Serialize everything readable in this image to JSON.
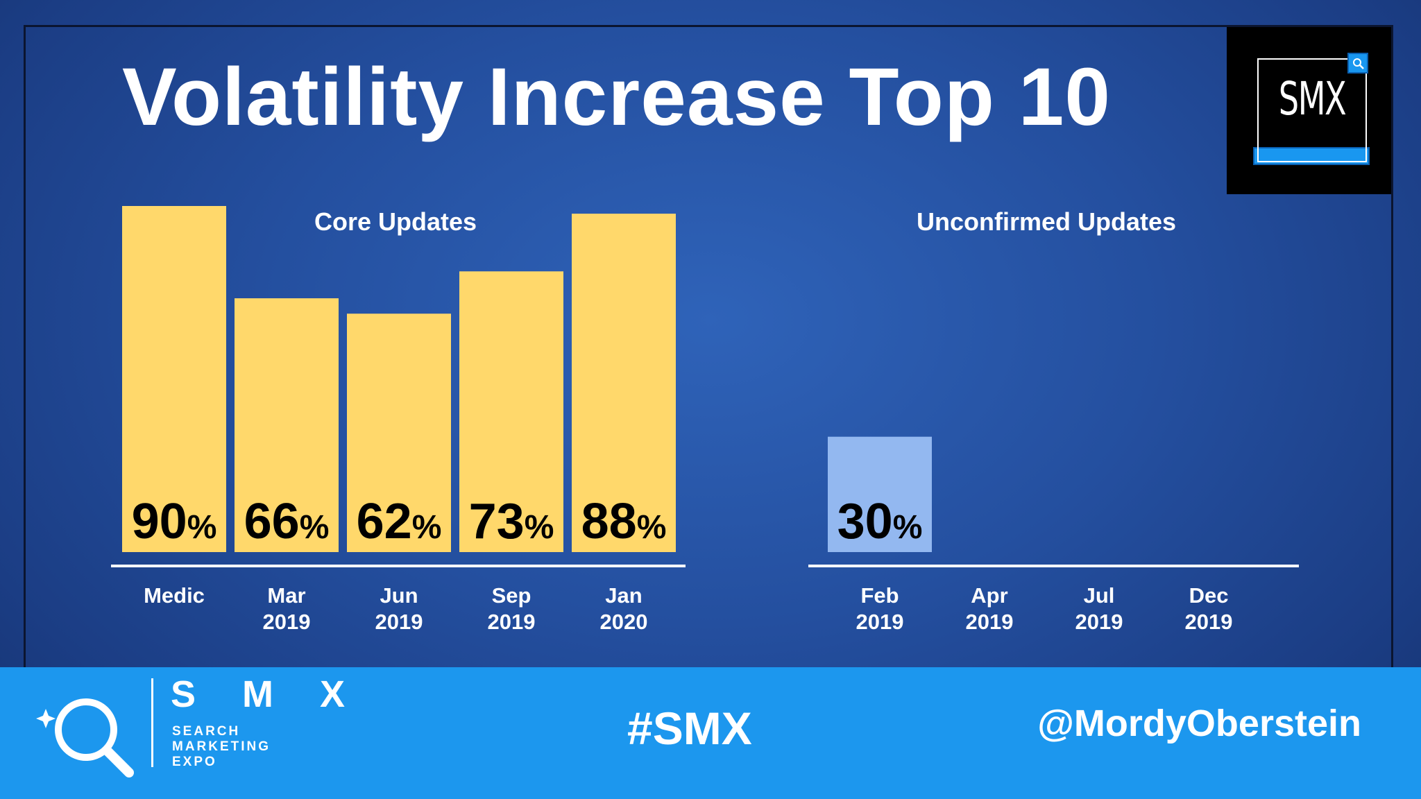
{
  "slide": {
    "title": "Volatility Increase Top 10",
    "badge_text": "SMX"
  },
  "footer": {
    "logo_name": "S M X",
    "logo_line1": "SEARCH",
    "logo_line2": "MARKETING",
    "logo_line3": "EXPO",
    "hashtag": "#SMX",
    "handle": "@MordyOberstein"
  },
  "chart_data": [
    {
      "type": "bar",
      "title": "Core Updates",
      "categories": [
        [
          "Medic"
        ],
        [
          "Mar",
          "2019"
        ],
        [
          "Jun",
          "2019"
        ],
        [
          "Sep",
          "2019"
        ],
        [
          "Jan",
          "2020"
        ]
      ],
      "values": [
        90,
        66,
        62,
        73,
        88
      ],
      "value_suffix": "%",
      "ylim": [
        0,
        90
      ],
      "xlabel": "",
      "ylabel": "",
      "grid": false,
      "bar_color": "#ffd86b"
    },
    {
      "type": "bar",
      "title": "Unconfirmed Updates",
      "categories": [
        [
          "Feb",
          "2019"
        ],
        [
          "Apr",
          "2019"
        ],
        [
          "Jul",
          "2019"
        ],
        [
          "Dec",
          "2019"
        ]
      ],
      "values": [
        30,
        null,
        null,
        null
      ],
      "value_suffix": "%",
      "ylim": [
        0,
        90
      ],
      "xlabel": "",
      "ylabel": "",
      "grid": false,
      "bar_color": "#93b8f0"
    }
  ],
  "colors": {
    "background": "#23479a",
    "footer": "#1c97ee",
    "text": "#ffffff",
    "value_text": "#000000"
  }
}
